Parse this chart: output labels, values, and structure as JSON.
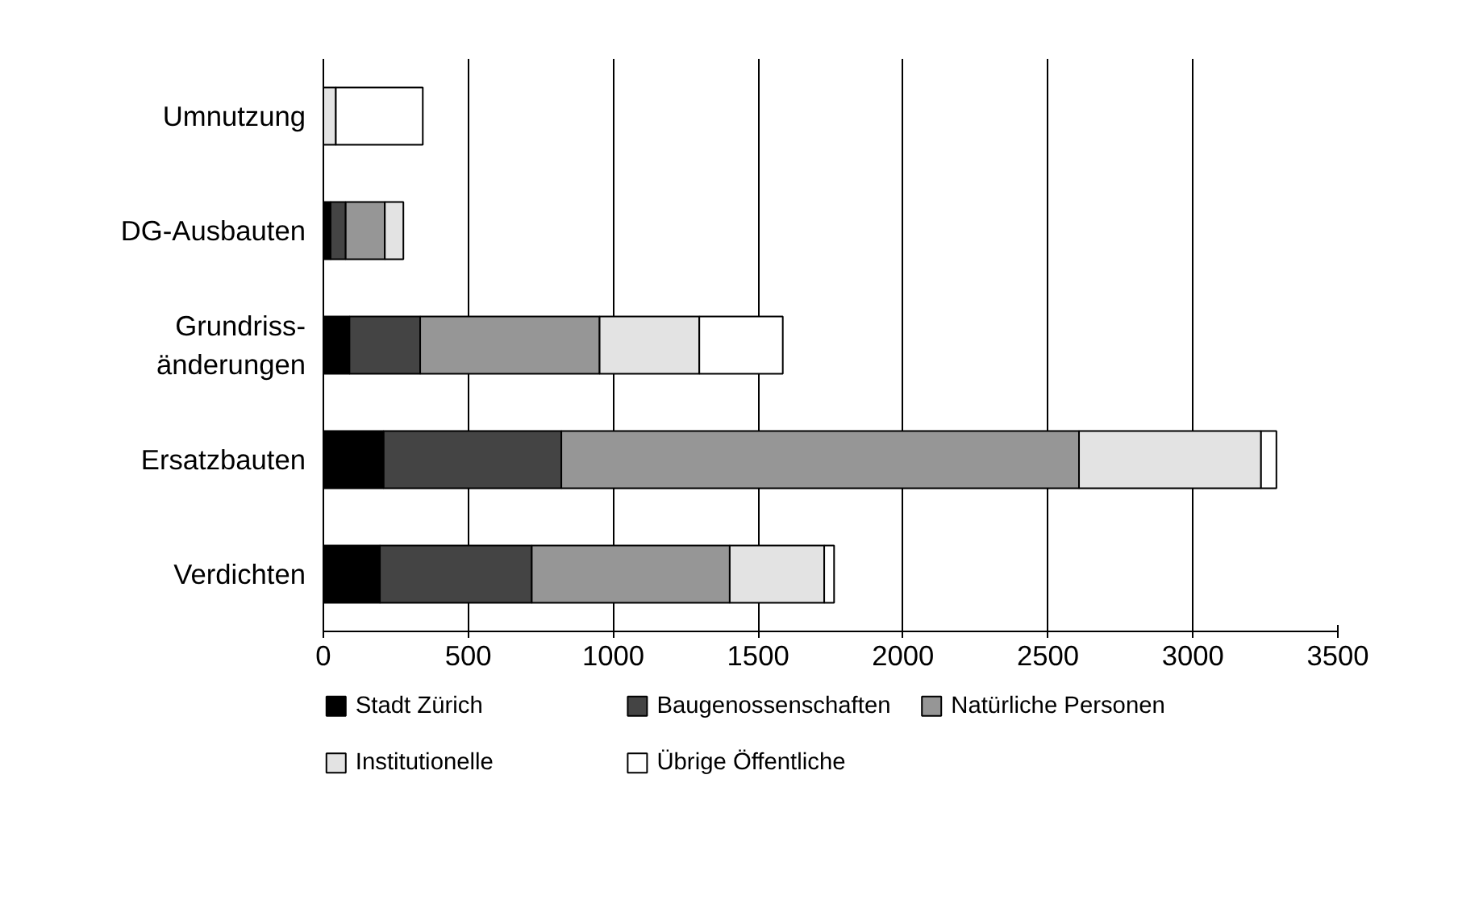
{
  "chart_data": {
    "type": "bar",
    "orientation": "horizontal",
    "stacked": true,
    "categories": [
      "Umnutzung",
      "DG-Ausbauten",
      "Grundriss-\nänderungen",
      "Ersatzbauten",
      "Verdichten"
    ],
    "series": [
      {
        "name": "Stadt Zürich",
        "color": "#000000",
        "values": [
          0,
          25,
          90,
          208,
          195
        ]
      },
      {
        "name": "Baugenossenschaften",
        "color": "#444444",
        "values": [
          0,
          52,
          244,
          613,
          524
        ]
      },
      {
        "name": "Natürliche Personen",
        "color": "#969696",
        "values": [
          0,
          135,
          619,
          1786,
          683
        ]
      },
      {
        "name": "Institutionelle",
        "color": "#e3e3e3",
        "values": [
          43,
          64,
          344,
          628,
          326
        ]
      },
      {
        "name": "Übrige Öffentliche",
        "color": "#ffffff",
        "values": [
          300,
          0,
          288,
          53,
          34
        ]
      }
    ],
    "xlim": [
      0,
      3500
    ],
    "xticks": [
      0,
      500,
      1000,
      1500,
      2000,
      2500,
      3000,
      3500
    ],
    "grid": "x",
    "legend": "bottom"
  }
}
